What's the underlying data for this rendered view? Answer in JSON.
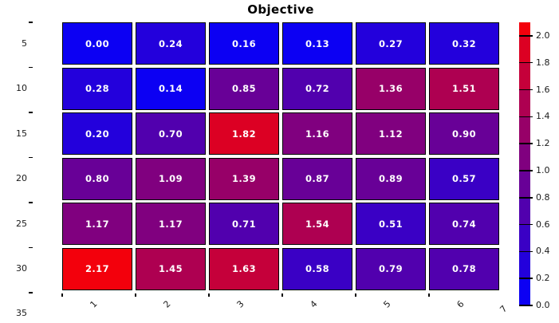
{
  "chart_data": {
    "type": "heatmap",
    "title": "Objective",
    "x_tick_labels": [
      "1",
      "2",
      "3",
      "4",
      "5",
      "6",
      "7"
    ],
    "y_tick_labels": [
      "5",
      "10",
      "15",
      "20",
      "25",
      "30",
      "35"
    ],
    "values": [
      [
        0.0,
        0.24,
        0.16,
        0.13,
        0.27,
        0.32
      ],
      [
        0.28,
        0.14,
        0.85,
        0.72,
        1.36,
        1.51
      ],
      [
        0.2,
        0.7,
        1.82,
        1.16,
        1.12,
        0.9
      ],
      [
        0.8,
        1.09,
        1.39,
        0.87,
        0.89,
        0.57
      ],
      [
        1.17,
        1.17,
        0.71,
        1.54,
        0.51,
        0.74
      ],
      [
        2.17,
        1.45,
        1.63,
        0.58,
        0.79,
        0.78
      ]
    ],
    "value_decimals": 2,
    "colorbar": {
      "tick_labels": [
        "0.0",
        "0.2",
        "0.4",
        "0.6",
        "0.8",
        "1.0",
        "1.2",
        "1.4",
        "1.6",
        "1.8",
        "2.0"
      ],
      "value_range": [
        0,
        2.1
      ],
      "band_size": 0.2,
      "position": "right"
    },
    "colors": {
      "low": "#0000ff",
      "high": "#ff0000",
      "interpolation_max": 2.2,
      "cell_text": "#ffffff",
      "cell_border": "#000000",
      "axis_text": "#1a1a1a",
      "background": "#ffffff"
    },
    "layout": {
      "grid": "6x6",
      "x_labels_rotated_deg": -45,
      "gridlines": "off"
    }
  }
}
